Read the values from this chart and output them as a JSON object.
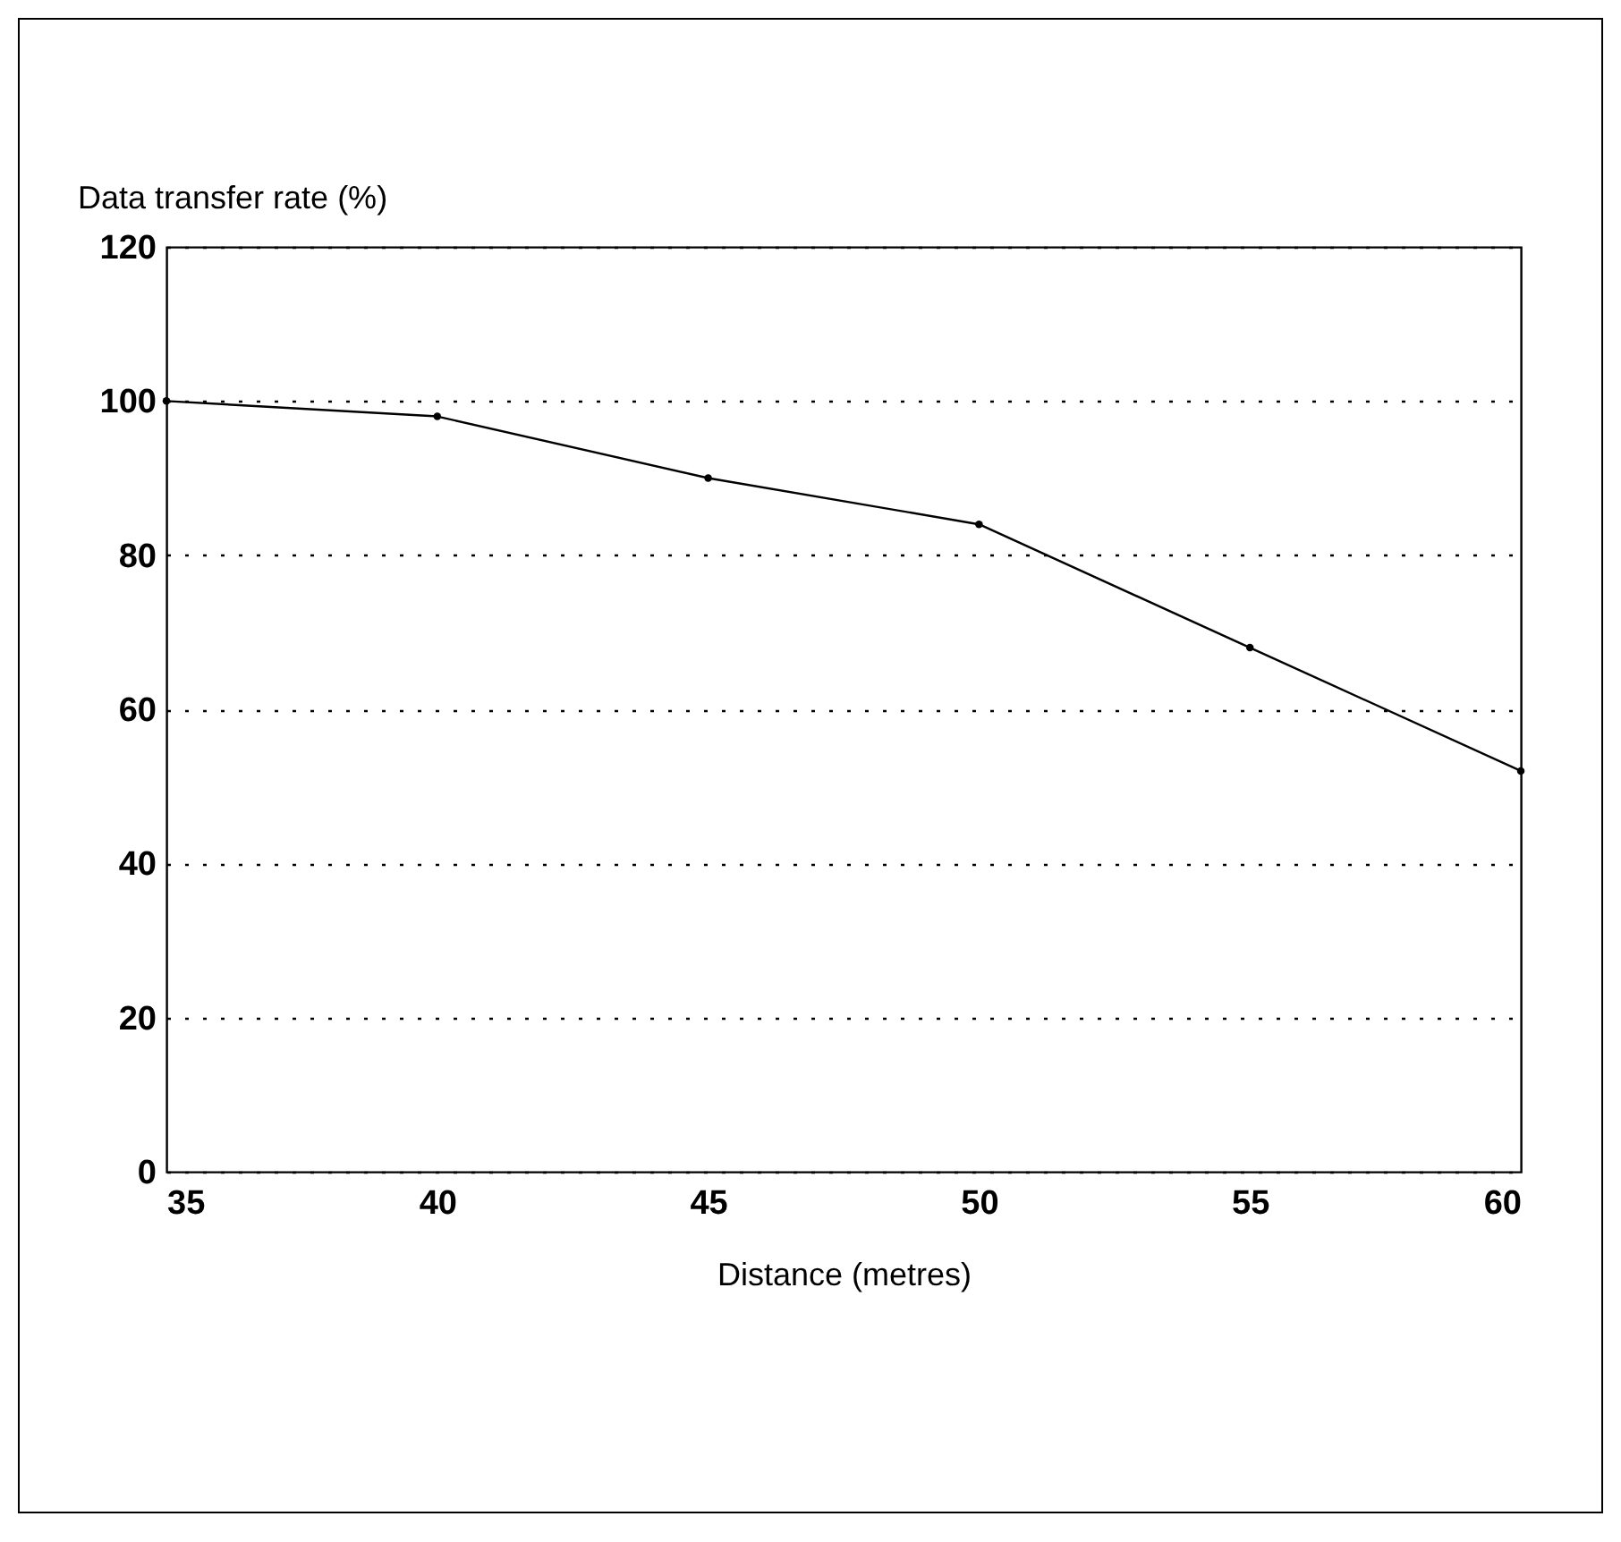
{
  "chart_data": {
    "type": "line",
    "xlabel": "Distance (metres)",
    "ylabel": "Data transfer rate (%)",
    "x": [
      35,
      40,
      45,
      50,
      55,
      60
    ],
    "series": [
      {
        "color": "#000000",
        "values": [
          100,
          98,
          90,
          84,
          68,
          52
        ]
      }
    ],
    "xlim": [
      35,
      60
    ],
    "xticks": [
      35,
      40,
      45,
      50,
      55,
      60
    ],
    "ylim": [
      0,
      120
    ],
    "yticks": [
      0,
      20,
      40,
      60,
      80,
      100,
      120
    ],
    "grid": "y",
    "marker": "circle",
    "line_style": "solid"
  }
}
